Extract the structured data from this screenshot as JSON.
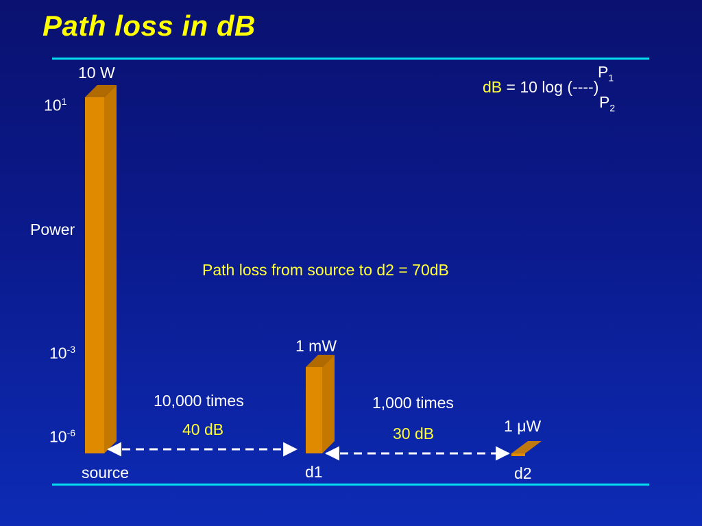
{
  "title": "Path loss in dB",
  "formula": {
    "lhs": "dB",
    "rhs": "= 10 log (----)",
    "numerator": "P",
    "numerator_sub": "1",
    "denominator": "P",
    "denominator_sub": "2"
  },
  "axis": {
    "label": "Power",
    "ticks": [
      {
        "base": "10",
        "exp": "1"
      },
      {
        "base": "10",
        "exp": "-3"
      },
      {
        "base": "10",
        "exp": "-6"
      }
    ]
  },
  "bars": [
    {
      "name": "source",
      "power_label": "10 W",
      "power_w": 10
    },
    {
      "name": "d1",
      "power_label": "1 mW",
      "power_w": 0.001
    },
    {
      "name": "d2",
      "power_label_prefix": "1 ",
      "power_label_unit": "μW",
      "power_w": 1e-06
    }
  ],
  "segments": [
    {
      "times": "10,000 times",
      "db": "40 dB"
    },
    {
      "times": "1,000 times",
      "db": "30 dB"
    }
  ],
  "summary": "Path loss from source to d2 = 70dB",
  "colors": {
    "bar_front": "#e08a00",
    "bar_side": "#b86e00",
    "bar_top": "#c07810",
    "rule": "#00e0f0",
    "title": "#ffff00",
    "accent_text": "#ffff33",
    "arrow": "#ffffff"
  }
}
